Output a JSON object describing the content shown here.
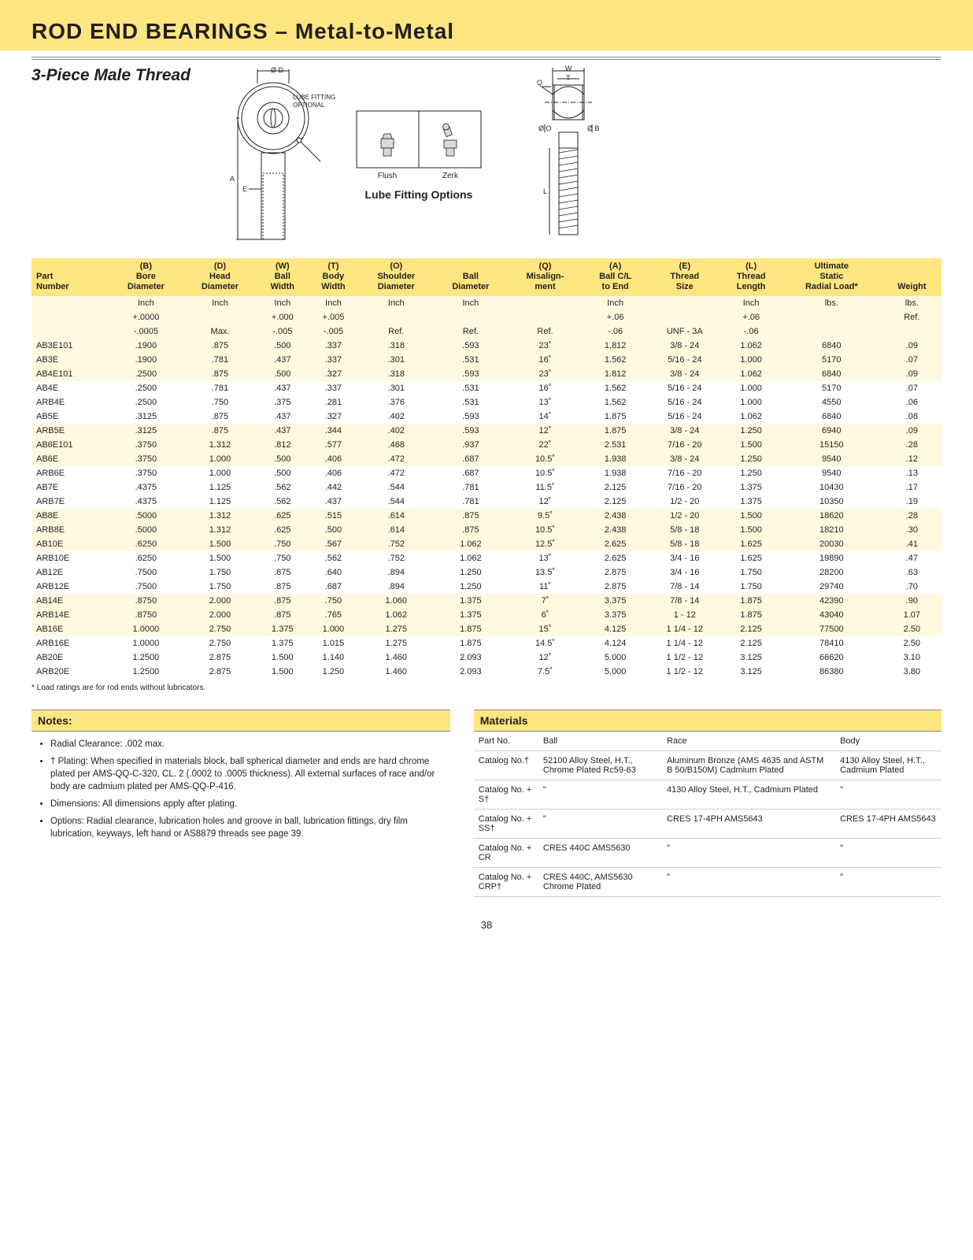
{
  "title_main": "ROD END BEARINGS",
  "title_sub": " – Metal-to-Metal",
  "subtitle": "3-Piece Male Thread",
  "lube_note": "LUBE FITTING\nOPTIONAL",
  "lube_opt1": "Flush",
  "lube_opt2": "Zerk",
  "lube_caption": "Lube Fitting Options",
  "page_number": "38",
  "footnote": "* Load ratings are for rod ends without lubricators.",
  "colors": {
    "band": "#ffe680",
    "band_light": "#fff9e0",
    "text": "#231f20",
    "rule": "#888888"
  },
  "headers": [
    {
      "code": "",
      "name": "Part\nNumber"
    },
    {
      "code": "(B)",
      "name": "Bore\nDiameter"
    },
    {
      "code": "(D)",
      "name": "Head\nDiameter"
    },
    {
      "code": "(W)",
      "name": "Ball\nWidth"
    },
    {
      "code": "(T)",
      "name": "Body\nWidth"
    },
    {
      "code": "(O)",
      "name": "Shoulder\nDiameter"
    },
    {
      "code": "",
      "name": "Ball\nDiameter"
    },
    {
      "code": "(Q)",
      "name": "Misalign-\nment"
    },
    {
      "code": "(A)",
      "name": "Ball C/L\nto End"
    },
    {
      "code": "(E)",
      "name": "Thread\nSize"
    },
    {
      "code": "(L)",
      "name": "Thread\nLength"
    },
    {
      "code": "",
      "name": "Ultimate\nStatic\nRadial Load*"
    },
    {
      "code": "",
      "name": "Weight"
    }
  ],
  "units": [
    [
      "",
      "Inch",
      "Inch",
      "Inch",
      "Inch",
      "Inch",
      "Inch",
      "",
      "Inch",
      "",
      "Inch",
      "lbs.",
      "lbs."
    ],
    [
      "",
      "+.0000",
      "",
      "+.000",
      "+.005",
      "",
      "",
      "",
      "+.06",
      "",
      "+.06",
      "",
      "Ref."
    ],
    [
      "",
      "-.0005",
      "Max.",
      "-.005",
      "-.005",
      "Ref.",
      "Ref.",
      "Ref.",
      "-.06",
      "UNF - 3A",
      "-.06",
      "",
      ""
    ]
  ],
  "rows": [
    [
      "AB3E101",
      ".1900",
      ".875",
      ".500",
      ".337",
      ".318",
      ".593",
      "23˚",
      "1.812",
      "3/8 - 24",
      "1.062",
      "6840",
      ".09"
    ],
    [
      "AB3E",
      ".1900",
      ".781",
      ".437",
      ".337",
      ".301",
      ".531",
      "16˚",
      "1.562",
      "5/16 - 24",
      "1.000",
      "5170",
      ".07"
    ],
    [
      "AB4E101",
      ".2500",
      ".875",
      ".500",
      ".327",
      ".318",
      ".593",
      "23˚",
      "1.812",
      "3/8 - 24",
      "1.062",
      "6840",
      ".09"
    ],
    [
      "AB4E",
      ".2500",
      ".781",
      ".437",
      ".337",
      ".301",
      ".531",
      "16˚",
      "1.562",
      "5/16 - 24",
      "1.000",
      "5170",
      ".07"
    ],
    [
      "ARB4E",
      ".2500",
      ".750",
      ".375",
      ".281",
      ".376",
      ".531",
      "13˚",
      "1.562",
      "5/16 - 24",
      "1.000",
      "4550",
      ".06"
    ],
    [
      "AB5E",
      ".3125",
      ".875",
      ".437",
      ".327",
      ".402",
      ".593",
      "14˚",
      "1.875",
      "5/16 - 24",
      "1.062",
      "6840",
      ".08"
    ],
    [
      "ARB5E",
      ".3125",
      ".875",
      ".437",
      ".344",
      ".402",
      ".593",
      "12˚",
      "1.875",
      "3/8 - 24",
      "1.250",
      "6940",
      ".09"
    ],
    [
      "AB6E101",
      ".3750",
      "1.312",
      ".812",
      ".577",
      ".468",
      ".937",
      "22˚",
      "2.531",
      "7/16 - 20",
      "1.500",
      "15150",
      ".28"
    ],
    [
      "AB6E",
      ".3750",
      "1.000",
      ".500",
      ".406",
      ".472",
      ".687",
      "10.5˚",
      "1.938",
      "3/8 - 24",
      "1.250",
      "9540",
      ".12"
    ],
    [
      "ARB6E",
      ".3750",
      "1.000",
      ".500",
      ".406",
      ".472",
      ".687",
      "10.5˚",
      "1.938",
      "7/16 - 20",
      "1.250",
      "9540",
      ".13"
    ],
    [
      "AB7E",
      ".4375",
      "1.125",
      ".562",
      ".442",
      ".544",
      ".781",
      "11.5˚",
      "2.125",
      "7/16 - 20",
      "1.375",
      "10430",
      ".17"
    ],
    [
      "ARB7E",
      ".4375",
      "1.125",
      ".562",
      ".437",
      ".544",
      ".781",
      "12˚",
      "2.125",
      "1/2 - 20",
      "1.375",
      "10350",
      ".19"
    ],
    [
      "AB8E",
      ".5000",
      "1.312",
      ".625",
      ".515",
      ".614",
      ".875",
      "9.5˚",
      "2.438",
      "1/2 - 20",
      "1.500",
      "18620",
      ".28"
    ],
    [
      "ARB8E",
      ".5000",
      "1.312",
      ".625",
      ".500",
      ".614",
      ".875",
      "10.5˚",
      "2.438",
      "5/8 - 18",
      "1.500",
      "18210",
      ".30"
    ],
    [
      "AB10E",
      ".6250",
      "1.500",
      ".750",
      ".567",
      ".752",
      "1.062",
      "12.5˚",
      "2.625",
      "5/8 - 18",
      "1.625",
      "20030",
      ".41"
    ],
    [
      "ARB10E",
      ".6250",
      "1.500",
      ".750",
      ".562",
      ".752",
      "1.062",
      "13˚",
      "2.625",
      "3/4 - 16",
      "1.625",
      "19890",
      ".47"
    ],
    [
      "AB12E",
      ".7500",
      "1.750",
      ".875",
      ".640",
      ".894",
      "1.250",
      "13.5˚",
      "2.875",
      "3/4 - 16",
      "1.750",
      "28200",
      ".63"
    ],
    [
      "ARB12E",
      ".7500",
      "1.750",
      ".875",
      ".687",
      ".894",
      "1.250",
      "11˚",
      "2.875",
      "7/8 - 14",
      "1.750",
      "29740",
      ".70"
    ],
    [
      "AB14E",
      ".8750",
      "2.000",
      ".875",
      ".750",
      "1.060",
      "1.375",
      "7˚",
      "3.375",
      "7/8 - 14",
      "1.875",
      "42390",
      ".90"
    ],
    [
      "ARB14E",
      ".8750",
      "2.000",
      ".875",
      ".765",
      "1.062",
      "1.375",
      "6˚",
      "3.375",
      "1 - 12",
      "1.875",
      "43040",
      "1.07"
    ],
    [
      "AB16E",
      "1.0000",
      "2.750",
      "1.375",
      "1.000",
      "1.275",
      "1.875",
      "15˚",
      "4.125",
      "1 1/4 - 12",
      "2.125",
      "77500",
      "2.50"
    ],
    [
      "ARB16E",
      "1.0000",
      "2.750",
      "1.375",
      "1.015",
      "1.275",
      "1.875",
      "14.5˚",
      "4.124",
      "1 1/4 - 12",
      "2.125",
      "78410",
      "2.50"
    ],
    [
      "AB20E",
      "1.2500",
      "2.875",
      "1.500",
      "1.140",
      "1.460",
      "2.093",
      "12˚",
      "5.000",
      "1 1/2 - 12",
      "3.125",
      "66620",
      "3.10"
    ],
    [
      "ARB20E",
      "1.2500",
      "2.875",
      "1.500",
      "1.250",
      "1.460",
      "2.093",
      "7.5˚",
      "5.000",
      "1 1/2 - 12",
      "3.125",
      "86380",
      "3.80"
    ]
  ],
  "bands": [
    0,
    1,
    2,
    6,
    7,
    8,
    12,
    13,
    14,
    18,
    19,
    20
  ],
  "notes_head": "Notes:",
  "notes": [
    "Radial Clearance: .002 max.",
    "† Plating: When specified in materials block, ball spherical diameter and ends are hard chrome plated per AMS-QQ-C-320, CL. 2 (.0002 to .0005 thickness). All external surfaces of race and/or body are cadmium plated per AMS-QQ-P-416.",
    "Dimensions: All dimensions apply after plating.",
    "Options: Radial clearance, lubrication holes and groove in ball, lubrication fittings, dry film lubrication, keyways, left hand or AS8879 threads see page 39."
  ],
  "materials_head": "Materials",
  "materials": {
    "cols": [
      "Part No.",
      "Ball",
      "Race",
      "Body"
    ],
    "rows": [
      [
        "Catalog No.†",
        "52100 Alloy Steel, H.T., Chrome Plated Rc59-63",
        "Aluminum Bronze (AMS 4635 and ASTM B 50/B150M) Cadmium Plated",
        "4130 Alloy Steel, H.T., Cadmium Plated"
      ],
      [
        "Catalog No. + S†",
        "\"",
        "4130 Alloy Steel, H.T., Cadmium Plated",
        "\""
      ],
      [
        "Catalog No. + SS†",
        "\"",
        "CRES 17-4PH AMS5643",
        "CRES 17-4PH AMS5643"
      ],
      [
        "Catalog No. + CR",
        "CRES 440C AMS5630",
        "\"",
        "\""
      ],
      [
        "Catalog No. + CRP†",
        "CRES 440C, AMS5630 Chrome Plated",
        "\"",
        "\""
      ]
    ]
  }
}
